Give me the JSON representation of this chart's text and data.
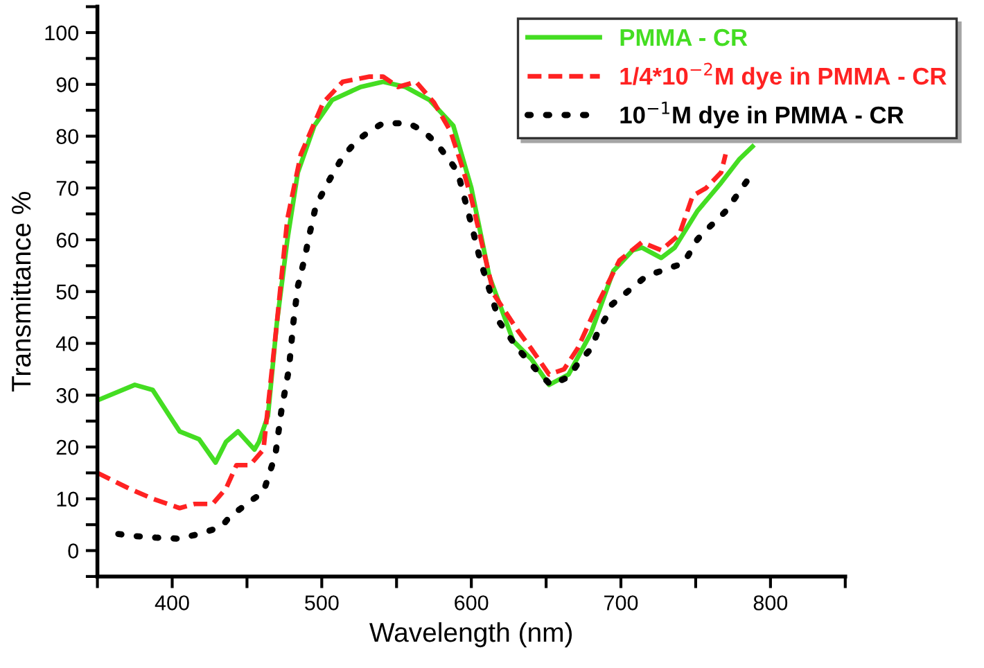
{
  "chart_data": {
    "type": "line",
    "xlabel": "Wavelength (nm)",
    "ylabel": "Transmittance %",
    "xlim": [
      350,
      850
    ],
    "ylim": [
      -5,
      105
    ],
    "xticks": [
      {
        "value": 350,
        "label": null
      },
      400,
      {
        "value": 450,
        "label": null
      },
      500,
      {
        "value": 550,
        "label": null
      },
      600,
      {
        "value": 650,
        "label": null
      },
      700,
      {
        "value": 750,
        "label": null
      },
      800,
      {
        "value": 850,
        "label": null
      }
    ],
    "yticks": [
      {
        "value": -5,
        "label": null
      },
      0,
      {
        "value": 5,
        "label": null
      },
      10,
      {
        "value": 15,
        "label": null
      },
      20,
      {
        "value": 25,
        "label": null
      },
      30,
      {
        "value": 35,
        "label": null
      },
      40,
      {
        "value": 45,
        "label": null
      },
      50,
      {
        "value": 55,
        "label": null
      },
      60,
      {
        "value": 65,
        "label": null
      },
      70,
      {
        "value": 75,
        "label": null
      },
      80,
      {
        "value": 85,
        "label": null
      },
      90,
      {
        "value": 95,
        "label": null
      },
      100,
      {
        "value": 105,
        "label": null
      }
    ],
    "grid": false,
    "legend": "top right",
    "marker": "none",
    "series": [
      {
        "name": "PMMA - CR",
        "color": "#44dd22",
        "line_style": "solid",
        "x": [
          350,
          375,
          387,
          405,
          418,
          429,
          436,
          444,
          455,
          458,
          464,
          470,
          477,
          484,
          495,
          507,
          526,
          541,
          556,
          572,
          588,
          600,
          612,
          628,
          640,
          652,
          665,
          680,
          695,
          708,
          714,
          727,
          736,
          751,
          767,
          779,
          788
        ],
        "values": [
          29,
          32,
          31,
          23,
          21.5,
          17,
          21,
          23,
          19.5,
          21,
          26,
          44,
          60,
          73,
          82,
          87,
          89.5,
          90.5,
          89.5,
          87,
          82,
          70,
          53,
          40.5,
          37,
          32,
          34,
          42,
          54,
          58,
          58.5,
          56.5,
          58.5,
          65.5,
          71,
          75.5,
          78
        ]
      },
      {
        "name": "1/4*10$^{−2}$M dye in PMMA - CR",
        "color": "#ff2222",
        "line_style": "dashed",
        "x": [
          350,
          371,
          387,
          405,
          415,
          427,
          436,
          443,
          452,
          461,
          470,
          477,
          486,
          501,
          514,
          532,
          541,
          551,
          563,
          575,
          586,
          594,
          600,
          615,
          631,
          640,
          652,
          662,
          671,
          686,
          699,
          714,
          727,
          739,
          748,
          757,
          767,
          770
        ],
        "values": [
          15,
          12,
          10,
          8.2,
          9,
          9,
          12,
          16.5,
          16.5,
          19.5,
          44,
          64,
          76.5,
          86.5,
          90.5,
          91.5,
          91.5,
          89.5,
          90.5,
          86.5,
          81,
          74,
          68,
          49.5,
          42.5,
          39,
          34,
          35,
          39,
          48.5,
          56,
          59.5,
          58,
          61,
          68.5,
          70,
          73,
          76.5
        ]
      },
      {
        "name": "10$^{−1}$M dye in PMMA - CR",
        "color": "#000000",
        "line_style": "dotted",
        "x": [
          364,
          375,
          389,
          404,
          418,
          433,
          438,
          452,
          461,
          469,
          473,
          478,
          481,
          484,
          489,
          491,
          496,
          504,
          514,
          523,
          532,
          541,
          554,
          558,
          568,
          577,
          585,
          591,
          595,
          600,
          606,
          613,
          619,
          631,
          643,
          653,
          665,
          671,
          680,
          685,
          690,
          694,
          717,
          742,
          745,
          751,
          754,
          770,
          781,
          787
        ],
        "values": [
          3.2,
          2.8,
          2.5,
          2.3,
          3.2,
          4.6,
          6.4,
          9.5,
          11.3,
          18.5,
          27,
          35,
          44,
          51,
          57,
          60,
          66.5,
          71,
          76,
          79,
          81,
          82.5,
          82.5,
          82.5,
          81,
          78.5,
          75.5,
          73,
          68.5,
          63,
          56,
          49.5,
          44,
          39,
          35,
          32,
          33.5,
          36,
          39,
          42.5,
          45,
          47.5,
          53,
          55.5,
          57,
          60,
          61,
          65.5,
          70,
          72.5
        ]
      }
    ]
  }
}
